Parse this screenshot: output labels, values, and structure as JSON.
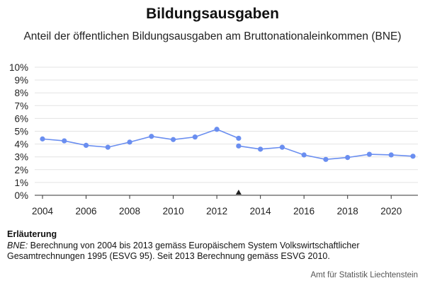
{
  "page": {
    "title": "Bildungsausgaben",
    "subtitle": "Anteil der öffentlichen Bildungsausgaben am Bruttonationaleinkommen (BNE)",
    "notes_heading": "Erläuterung",
    "notes_abbr": "BNE:",
    "notes_text": " Berechnung von 2004 bis 2013 gemäss Europäischem System Volkswirtschaftlicher Gesamtrechnungen 1995 (ESVG 95). Seit 2013 Berechnung gemäss ESVG 2010.",
    "source": "Amt für Statistik Liechtenstein"
  },
  "chart_data": {
    "type": "line",
    "ylim": [
      0,
      10
    ],
    "xlim": [
      2004,
      2021
    ],
    "y_ticks": [
      "0%",
      "1%",
      "2%",
      "3%",
      "4%",
      "5%",
      "6%",
      "7%",
      "8%",
      "9%",
      "10%"
    ],
    "x_ticks": [
      "2004",
      "2006",
      "2008",
      "2010",
      "2012",
      "2014",
      "2016",
      "2018",
      "2020"
    ],
    "grid": true,
    "line_color": "#6a8ef0",
    "series": [
      {
        "x": [
          2004,
          2005,
          2006,
          2007,
          2008,
          2009,
          2010,
          2011,
          2012,
          2013
        ],
        "y": [
          4.4,
          4.25,
          3.9,
          3.75,
          4.15,
          4.6,
          4.35,
          4.55,
          5.15,
          4.45
        ]
      },
      {
        "x": [
          2013,
          2014,
          2015,
          2016,
          2017,
          2018,
          2019,
          2020,
          2021
        ],
        "y": [
          3.85,
          3.6,
          3.75,
          3.15,
          2.8,
          2.95,
          3.2,
          3.15,
          3.05
        ]
      }
    ],
    "marker": {
      "x": 2013,
      "shape": "triangle"
    }
  }
}
